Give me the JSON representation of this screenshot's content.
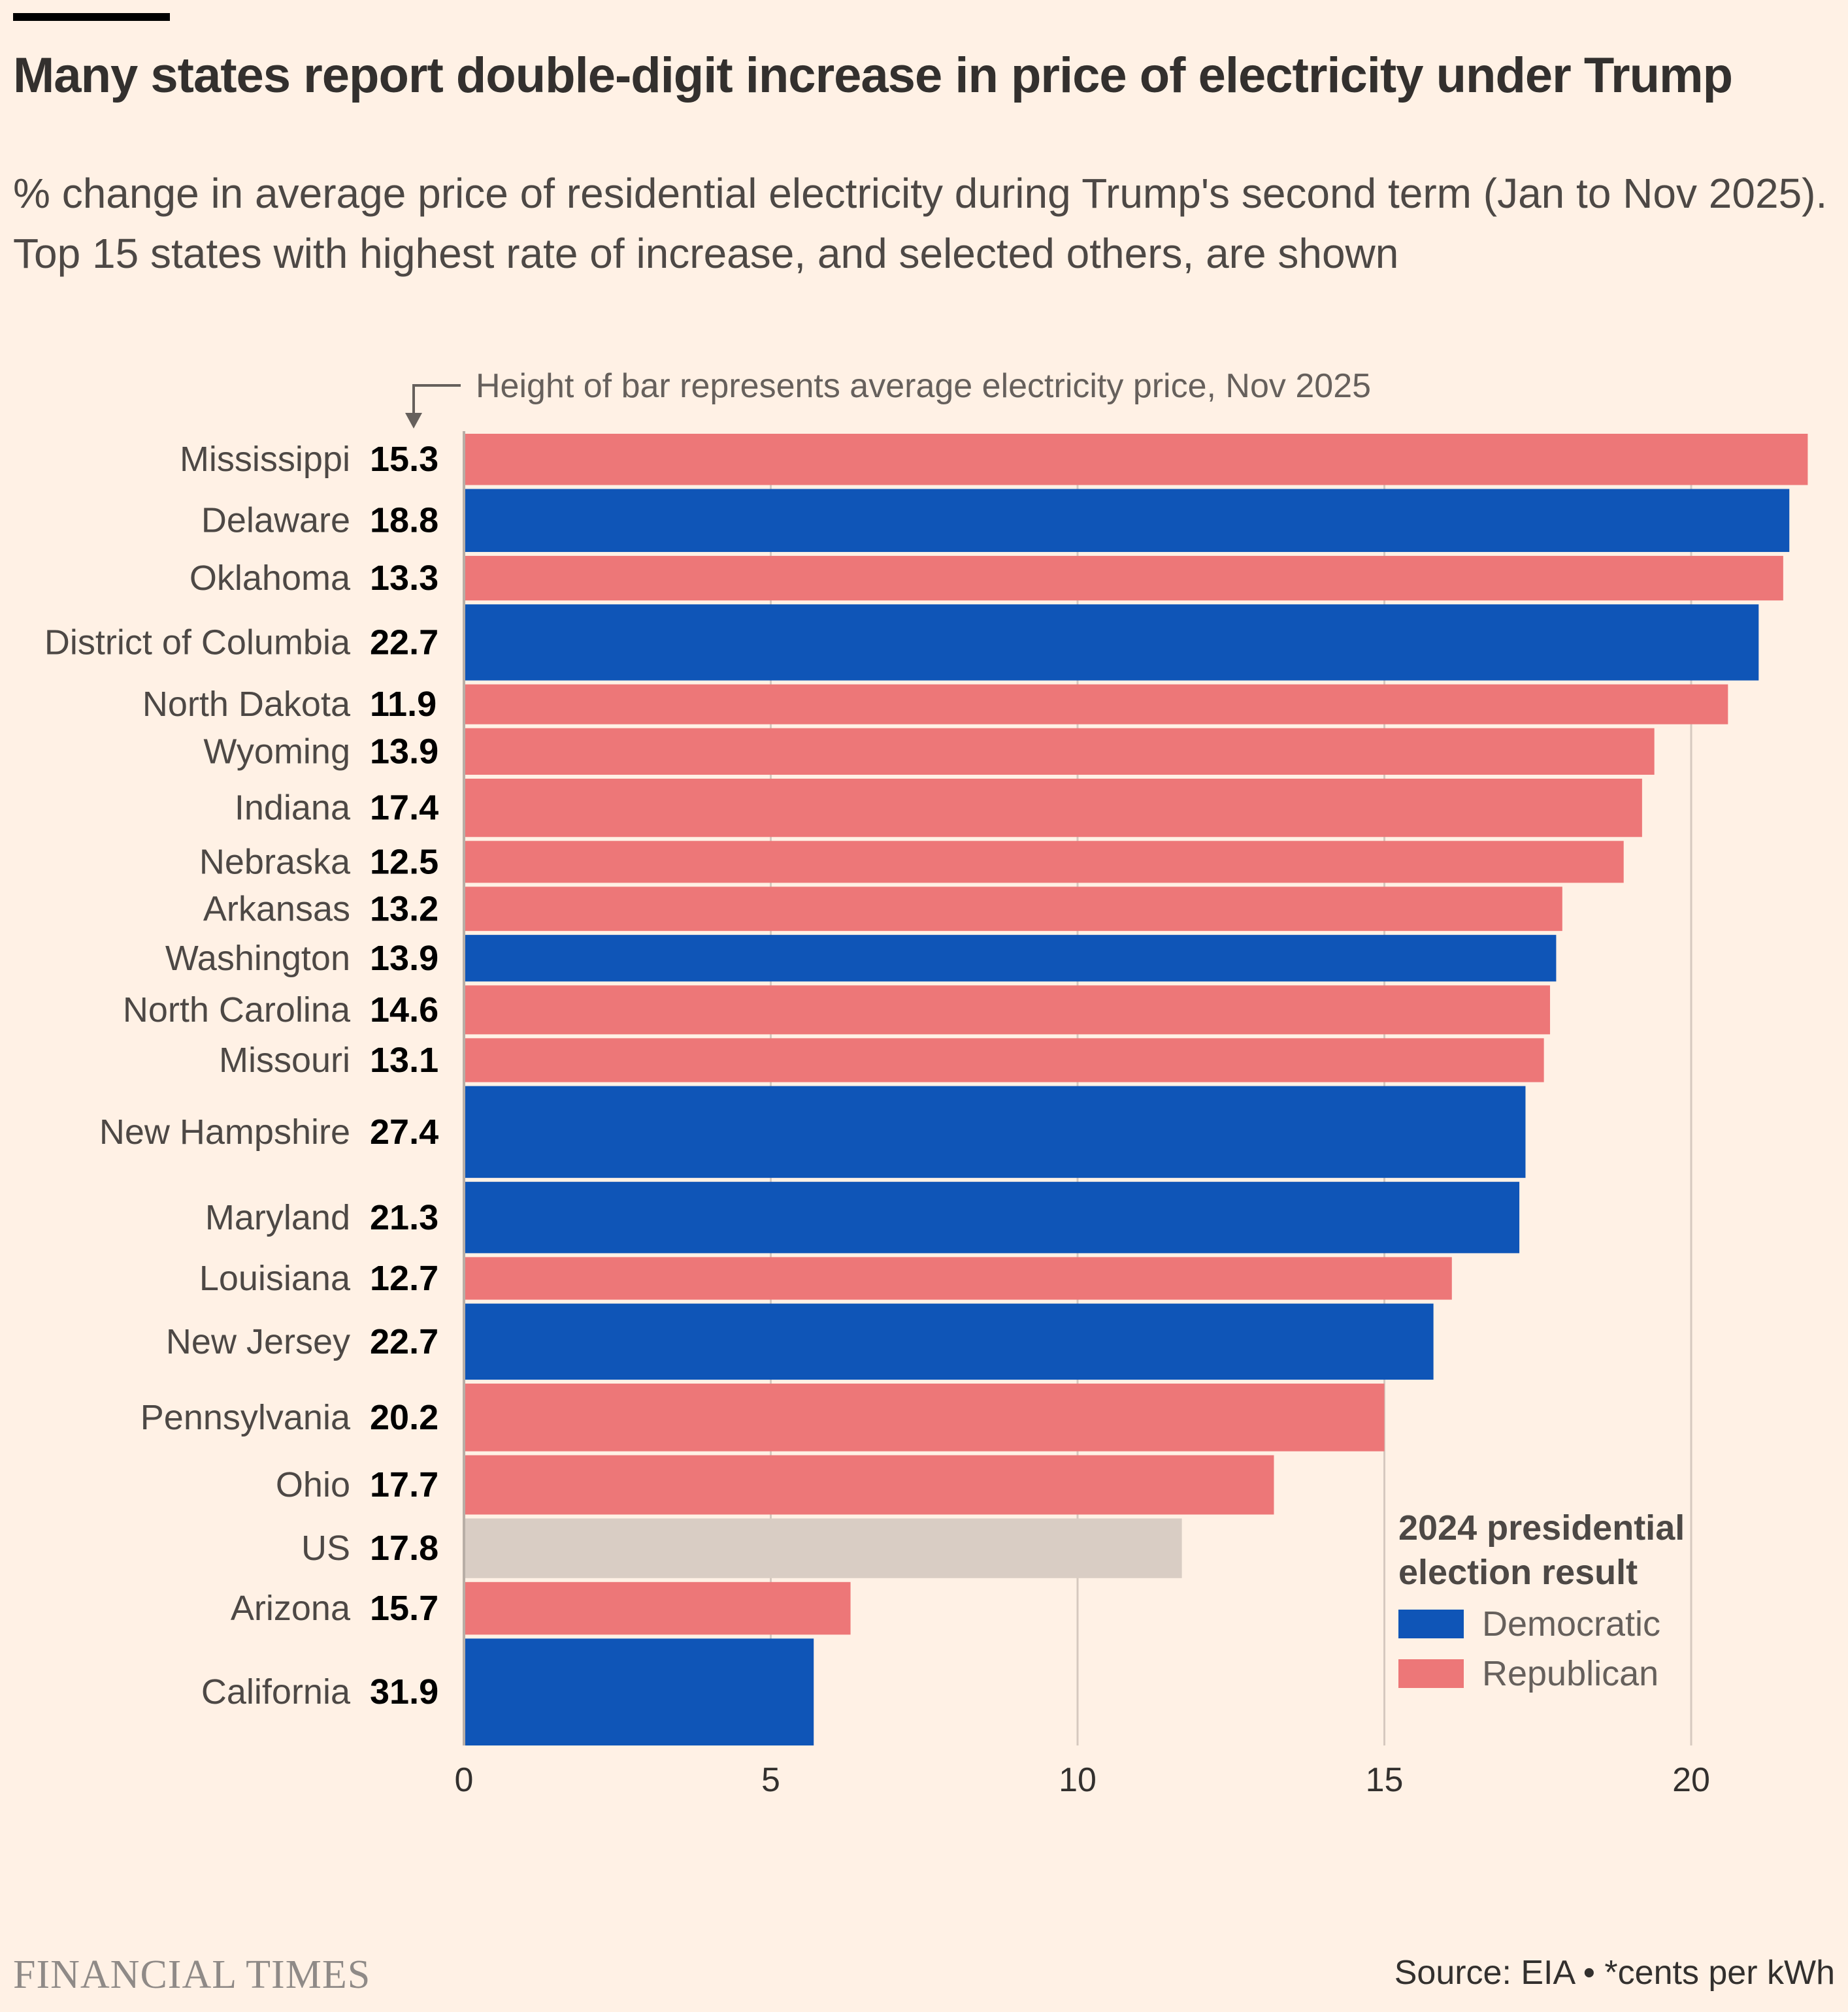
{
  "title": "Many states report double-digit increase in price of electricity under Trump",
  "subtitle": "% change in average price of residential electricity during Trump's second term (Jan to Nov 2025). Top 15 states with highest rate of increase, and selected others, are shown",
  "annotation": "Height of bar represents average electricity price, Nov 2025",
  "legend": {
    "title_line1": "2024 presidential",
    "title_line2": "election result",
    "democratic": "Democratic",
    "republican": "Republican"
  },
  "brand": "FINANCIAL TIMES",
  "source": "Source: EIA • *cents per kWh",
  "colors": {
    "democratic": "#0f55b7",
    "republican": "#ed7778",
    "us": "#d9cdc4",
    "gridline": "#d6c9bf",
    "axis": "#b8aea6"
  },
  "chart_data": {
    "type": "bar",
    "orientation": "horizontal",
    "xlim": [
      0,
      22
    ],
    "xticks": [
      0,
      5,
      10,
      15,
      20
    ],
    "grid": true,
    "legend_position": "bottom-right",
    "bar_height_meaning": "average electricity price, Nov 2025 (cents per kWh)",
    "categories": [
      "Mississippi",
      "Delaware",
      "Oklahoma",
      "District of Columbia",
      "North Dakota",
      "Wyoming",
      "Indiana",
      "Nebraska",
      "Arkansas",
      "Washington",
      "North Carolina",
      "Missouri",
      "New Hampshire",
      "Maryland",
      "Louisiana",
      "New Jersey",
      "Pennsylvania",
      "Ohio",
      "US",
      "Arizona",
      "California"
    ],
    "values": [
      21.9,
      21.6,
      21.5,
      21.1,
      20.6,
      19.4,
      19.2,
      18.9,
      17.9,
      17.8,
      17.7,
      17.6,
      17.3,
      17.2,
      16.1,
      15.8,
      15.0,
      13.2,
      11.7,
      6.3,
      5.7
    ],
    "price_cents_per_kwh": [
      15.3,
      18.8,
      13.3,
      22.7,
      11.9,
      13.9,
      17.4,
      12.5,
      13.2,
      13.9,
      14.6,
      13.1,
      27.4,
      21.3,
      12.7,
      22.7,
      20.2,
      17.7,
      17.8,
      15.7,
      31.9
    ],
    "party": [
      "R",
      "D",
      "R",
      "D",
      "R",
      "R",
      "R",
      "R",
      "R",
      "D",
      "R",
      "R",
      "D",
      "D",
      "R",
      "D",
      "R",
      "R",
      "US",
      "R",
      "D"
    ]
  }
}
